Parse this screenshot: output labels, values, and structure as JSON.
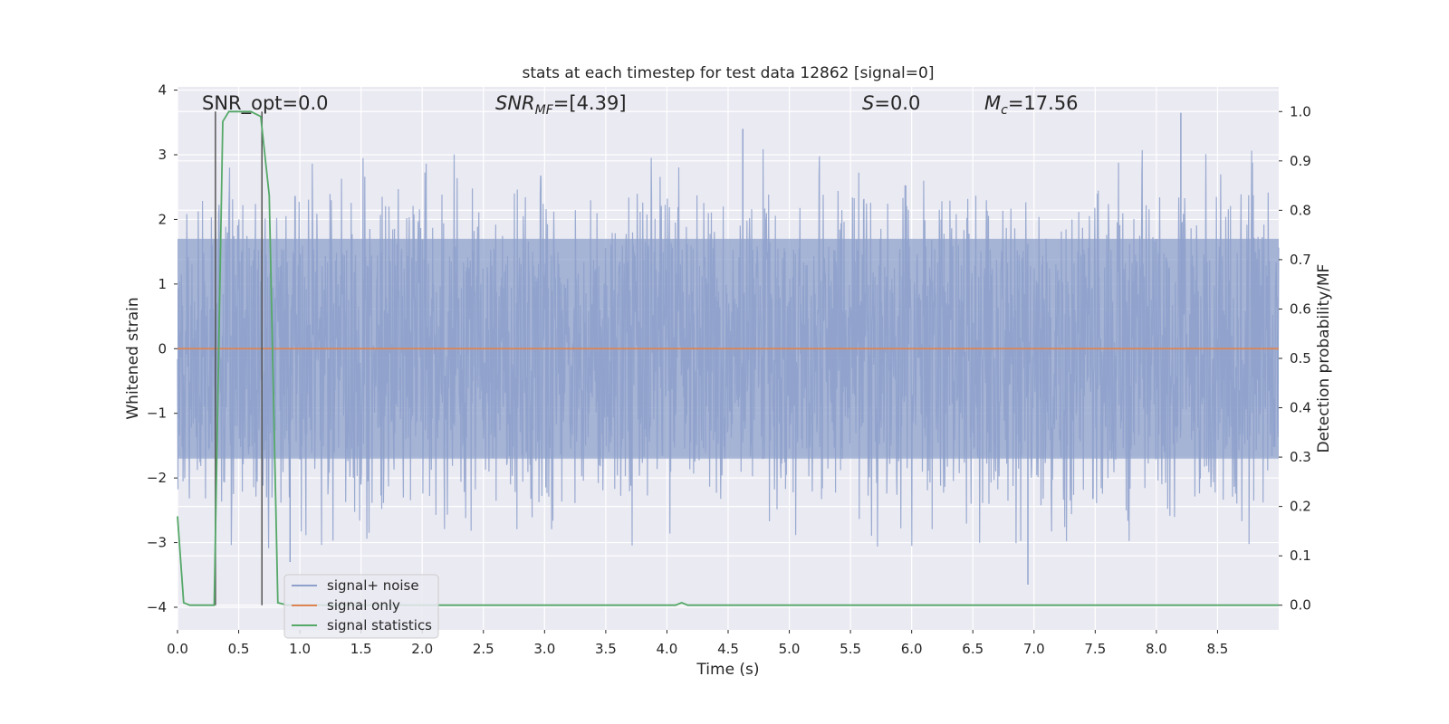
{
  "chart_data": {
    "type": "line",
    "title": "stats at each timestep for test data 12862 [signal=0]",
    "xlabel": "Time (s)",
    "ylabel": "Whitened strain",
    "ylabel_right": "Detection probability/MF",
    "xlim": [
      0.0,
      9.0
    ],
    "ylim": [
      -4.35,
      4.05
    ],
    "ylim_right": [
      -0.05,
      1.05
    ],
    "x_ticks": [
      "0.0",
      "0.5",
      "1.0",
      "1.5",
      "2.0",
      "2.5",
      "3.0",
      "3.5",
      "4.0",
      "4.5",
      "5.0",
      "5.5",
      "6.0",
      "6.5",
      "7.0",
      "7.5",
      "8.0",
      "8.5"
    ],
    "x_tick_values": [
      0.0,
      0.5,
      1.0,
      1.5,
      2.0,
      2.5,
      3.0,
      3.5,
      4.0,
      4.5,
      5.0,
      5.5,
      6.0,
      6.5,
      7.0,
      7.5,
      8.0,
      8.5
    ],
    "y_ticks": [
      "4",
      "3",
      "2",
      "1",
      "0",
      "−1",
      "−2",
      "−3",
      "−4"
    ],
    "y_tick_values": [
      4,
      3,
      2,
      1,
      0,
      -1,
      -2,
      -3,
      -4
    ],
    "y_ticks_right": [
      "1.0",
      "0.9",
      "0.8",
      "0.7",
      "0.6",
      "0.5",
      "0.4",
      "0.3",
      "0.2",
      "0.1",
      "0.0"
    ],
    "y_tick_values_right": [
      1.0,
      0.9,
      0.8,
      0.7,
      0.6,
      0.5,
      0.4,
      0.3,
      0.2,
      0.1,
      0.0
    ],
    "grid": true,
    "legend_position": "bottom-left",
    "series": [
      {
        "name": "signal+ noise",
        "color": "#8da0cb",
        "axis": "left",
        "kind": "noise-band",
        "band_core": [
          -1.7,
          1.7
        ],
        "spike_max": 3.65,
        "spike_min": -3.7,
        "notable_peaks": [
          {
            "x": 4.62,
            "y": 3.4
          },
          {
            "x": 8.2,
            "y": 3.65
          },
          {
            "x": 6.95,
            "y": -3.65
          },
          {
            "x": 0.92,
            "y": -3.3
          }
        ]
      },
      {
        "name": "signal only",
        "color": "#dd8452",
        "axis": "left",
        "x": [
          0.0,
          9.0
        ],
        "y": [
          0.0,
          0.0
        ]
      },
      {
        "name": "signal statistics",
        "color": "#55a868",
        "axis": "right",
        "x": [
          0.0,
          0.05,
          0.1,
          0.2,
          0.3,
          0.37,
          0.42,
          0.5,
          0.6,
          0.68,
          0.75,
          0.82,
          0.9,
          1.0,
          2.0,
          3.0,
          4.0,
          4.07,
          4.12,
          4.17,
          5.0,
          6.0,
          7.0,
          8.0,
          9.0
        ],
        "y": [
          0.18,
          0.005,
          0.0,
          0.0,
          0.0,
          0.98,
          1.0,
          1.0,
          1.0,
          0.99,
          0.83,
          0.005,
          0.0,
          0.0,
          0.0,
          0.0,
          0.0,
          0.0,
          0.005,
          0.0,
          0.0,
          0.0,
          0.0,
          0.0,
          0.0
        ]
      }
    ],
    "vlines": [
      0.31,
      0.69
    ],
    "annotations": {
      "snr_opt": "SNR_opt=0.0",
      "snr_mf_label": "SNR",
      "snr_mf_sub": "MF",
      "snr_mf_value": "=[4.39]",
      "s_label": "S",
      "s_value": "=0.0",
      "mc_label": "M",
      "mc_sub": "c",
      "mc_value": "=17.56"
    }
  }
}
